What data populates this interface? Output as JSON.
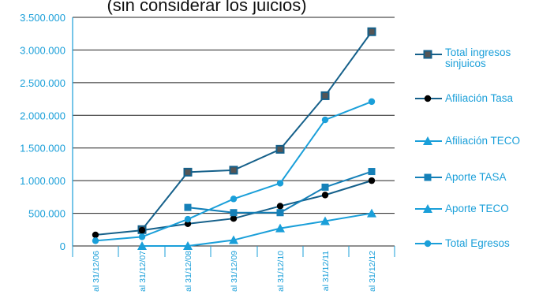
{
  "chart_data": {
    "type": "line",
    "title": "(sin considerar los juicios)",
    "categories": [
      "al 31/12/06",
      "al 31/12/07",
      "al 31/12/08",
      "al 31/12/09",
      "al 31/12/10",
      "al 31/12/11",
      "al 31/12/12"
    ],
    "ylim": [
      0,
      3500000
    ],
    "yticks": [
      0,
      500000,
      1000000,
      1500000,
      2000000,
      2500000,
      3000000,
      3500000
    ],
    "ytick_labels": [
      "0",
      "500.000",
      "1.000.000",
      "1.500.000",
      "2.000.000",
      "2.500.000",
      "3.000.000",
      "3.500.000"
    ],
    "grid": "horizontal",
    "legend_position": "right",
    "series": [
      {
        "name": "Total ingresos sinjuicos",
        "color": "#15608a",
        "marker": "square-outline",
        "values": [
          null,
          250000,
          1130000,
          1160000,
          1480000,
          2300000,
          3280000
        ]
      },
      {
        "name": "Afiliación Tasa",
        "color": "#15608a",
        "marker": "circle-black",
        "values": [
          170000,
          240000,
          340000,
          420000,
          610000,
          780000,
          1000000
        ]
      },
      {
        "name": "Afiliación TECO",
        "color": "#1a9fd9",
        "marker": "triangle",
        "values": [
          null,
          0,
          0,
          90000,
          270000,
          380000,
          500000
        ]
      },
      {
        "name": "Aporte TASA",
        "color": "#1580b8",
        "marker": "square",
        "values": [
          null,
          null,
          590000,
          510000,
          510000,
          900000,
          1140000
        ]
      },
      {
        "name": "Aporte TECO",
        "color": "#1a9fd9",
        "marker": "triangle",
        "values": [
          null,
          null,
          null,
          null,
          null,
          null,
          null
        ]
      },
      {
        "name": "Total Egresos",
        "color": "#1a9fd9",
        "marker": "circle",
        "values": [
          80000,
          140000,
          410000,
          720000,
          960000,
          1930000,
          2210000
        ]
      }
    ]
  }
}
